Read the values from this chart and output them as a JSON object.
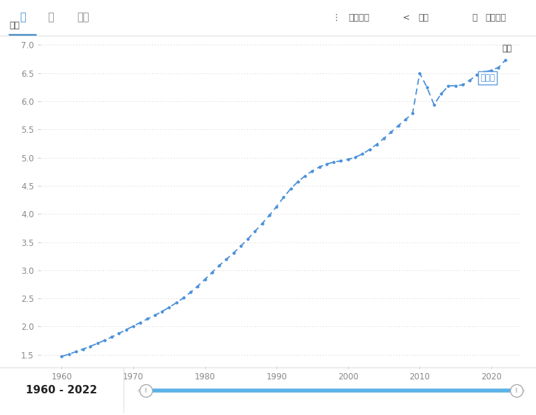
{
  "years": [
    1960,
    1961,
    1962,
    1963,
    1964,
    1965,
    1966,
    1967,
    1968,
    1969,
    1970,
    1971,
    1972,
    1973,
    1974,
    1975,
    1976,
    1977,
    1978,
    1979,
    1980,
    1981,
    1982,
    1983,
    1984,
    1985,
    1986,
    1987,
    1988,
    1989,
    1990,
    1991,
    1992,
    1993,
    1994,
    1995,
    1996,
    1997,
    1998,
    1999,
    2000,
    2001,
    2002,
    2003,
    2004,
    2005,
    2006,
    2007,
    2008,
    2009,
    2010,
    2011,
    2012,
    2013,
    2014,
    2015,
    2016,
    2017,
    2018,
    2019,
    2020,
    2021,
    2022
  ],
  "population": [
    1.47,
    1.511,
    1.555,
    1.601,
    1.65,
    1.702,
    1.757,
    1.816,
    1.878,
    1.944,
    2.01,
    2.074,
    2.137,
    2.201,
    2.268,
    2.342,
    2.422,
    2.51,
    2.609,
    2.719,
    2.84,
    2.963,
    3.083,
    3.196,
    3.308,
    3.427,
    3.556,
    3.691,
    3.831,
    3.975,
    4.13,
    4.296,
    4.449,
    4.573,
    4.677,
    4.764,
    4.835,
    4.886,
    4.921,
    4.943,
    4.968,
    5.006,
    5.065,
    5.143,
    5.237,
    5.341,
    5.453,
    5.567,
    5.676,
    5.783,
    6.501,
    6.253,
    5.942,
    6.132,
    6.273,
    6.278,
    6.292,
    6.374,
    6.47,
    6.518,
    6.55,
    6.601,
    6.735
  ],
  "line_color": "#4a90d9",
  "dot_color": "#4a90d9",
  "background_color": "#ffffff",
  "chart_bg_color": "#ffffff",
  "grid_color": "#c8c8c8",
  "topbar_bg": "#f7f7f7",
  "bottombar_bg": "#f2f2f2",
  "bottombar_border": "#e0e0e0",
  "topbar_border": "#e0e0e0",
  "ylabel": "百万",
  "label_text": "利比亚",
  "yticks": [
    1.5,
    2.0,
    2.5,
    3.0,
    3.5,
    4.0,
    4.5,
    5.0,
    5.5,
    6.0,
    6.5,
    7.0
  ],
  "xticks": [
    1960,
    1970,
    1980,
    1990,
    2000,
    2010,
    2020
  ],
  "ylim": [
    1.3,
    7.15
  ],
  "xlim": [
    1957,
    2024
  ],
  "tab_labels": [
    "线",
    "柱",
    "地图"
  ],
  "btn_labels": [
    "显示更多",
    "分享",
    "详细信息"
  ],
  "checkbox_label": "标签",
  "footer_text": "1960 - 2022",
  "active_tab_color": "#3d8bcd",
  "inactive_tab_color": "#888888",
  "btn_color": "#555555",
  "tick_color": "#888888",
  "slider_color": "#5bb3e8",
  "slider_handle_color": "#ffffff",
  "slider_handle_border": "#aaaaaa"
}
